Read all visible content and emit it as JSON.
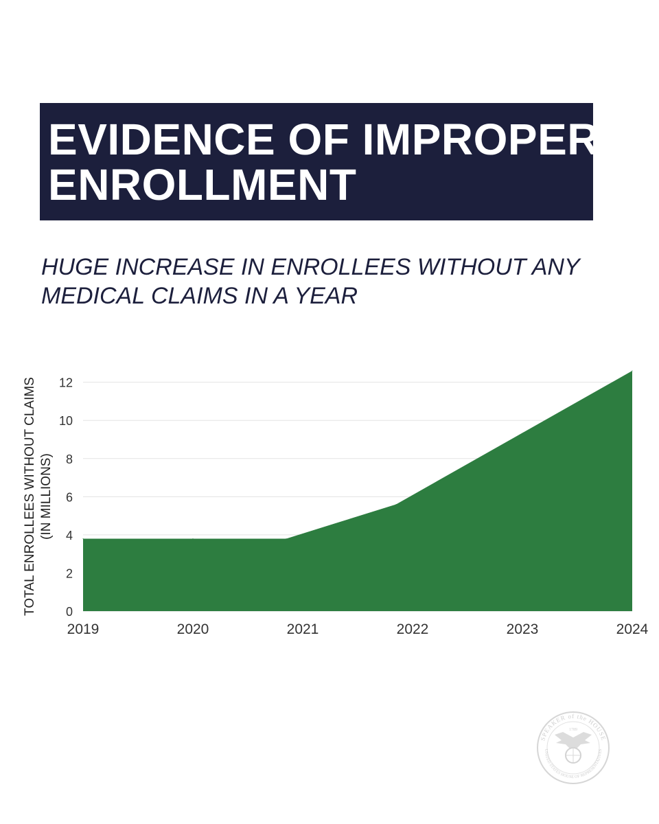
{
  "title": {
    "line1": "EVIDENCE OF IMPROPER",
    "line2": "ENROLLMENT"
  },
  "subtitle": {
    "line1": "HUGE INCREASE IN ENROLLEES WITHOUT ANY",
    "line2": "MEDICAL CLAIMS IN A YEAR"
  },
  "colors": {
    "title_bg": "#1c1f3c",
    "area_fill": "#2d7d40",
    "grid": "#e3e3e3"
  },
  "chart_data": {
    "type": "area",
    "title": "HUGE INCREASE IN ENROLLEES WITHOUT ANY MEDICAL CLAIMS IN A YEAR",
    "ylabel_lines": [
      "TOTAL ENROLLEES WITHOUT CLAIMS",
      "(IN MILLIONS)"
    ],
    "xlabel": "",
    "categories": [
      "2019",
      "2020",
      "2021",
      "2022",
      "2023",
      "2024"
    ],
    "series": [
      {
        "name": "Total enrollees without claims",
        "x": [
          2019,
          2020,
          2020.85,
          2021.85,
          2024
        ],
        "values": [
          3.8,
          3.8,
          3.8,
          5.6,
          12.6
        ]
      }
    ],
    "yticks": [
      "0",
      "2",
      "4",
      "6",
      "8",
      "10",
      "12"
    ],
    "ylim": [
      0,
      12.6
    ],
    "xlim": [
      2019,
      2024
    ],
    "grid": true
  },
  "seal": {
    "top_text": "SPEAKER of the HOUSE",
    "year": "1789",
    "bottom_text": "UNITED STATES HOUSE OF REPRESENTATIVES",
    "icon": "eagle-globe-icon"
  }
}
